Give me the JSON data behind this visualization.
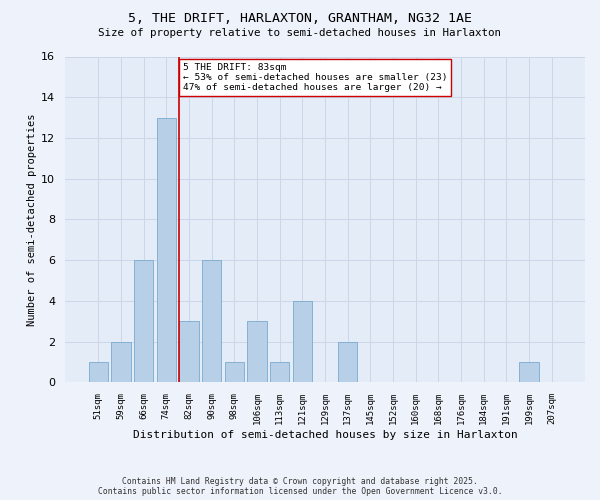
{
  "title1": "5, THE DRIFT, HARLAXTON, GRANTHAM, NG32 1AE",
  "title2": "Size of property relative to semi-detached houses in Harlaxton",
  "xlabel": "Distribution of semi-detached houses by size in Harlaxton",
  "ylabel": "Number of semi-detached properties",
  "categories": [
    "51sqm",
    "59sqm",
    "66sqm",
    "74sqm",
    "82sqm",
    "90sqm",
    "98sqm",
    "106sqm",
    "113sqm",
    "121sqm",
    "129sqm",
    "137sqm",
    "145sqm",
    "152sqm",
    "160sqm",
    "168sqm",
    "176sqm",
    "184sqm",
    "191sqm",
    "199sqm",
    "207sqm"
  ],
  "values": [
    1,
    2,
    6,
    13,
    3,
    6,
    1,
    3,
    1,
    4,
    0,
    2,
    0,
    0,
    0,
    0,
    0,
    0,
    0,
    1,
    0
  ],
  "bar_color": "#b8cfe8",
  "bar_edge_color": "#7aaace",
  "property_line_idx": 4,
  "property_line_color": "#cc0000",
  "annotation_text": "5 THE DRIFT: 83sqm\n← 53% of semi-detached houses are smaller (23)\n47% of semi-detached houses are larger (20) →",
  "annotation_box_color": "#ffffff",
  "annotation_box_edge": "#cc0000",
  "ylim": [
    0,
    16
  ],
  "yticks": [
    0,
    2,
    4,
    6,
    8,
    10,
    12,
    14,
    16
  ],
  "footer": "Contains HM Land Registry data © Crown copyright and database right 2025.\nContains public sector information licensed under the Open Government Licence v3.0.",
  "grid_color": "#ccd6e8",
  "bg_color": "#e4ecf7",
  "fig_bg_color": "#eef2fa"
}
